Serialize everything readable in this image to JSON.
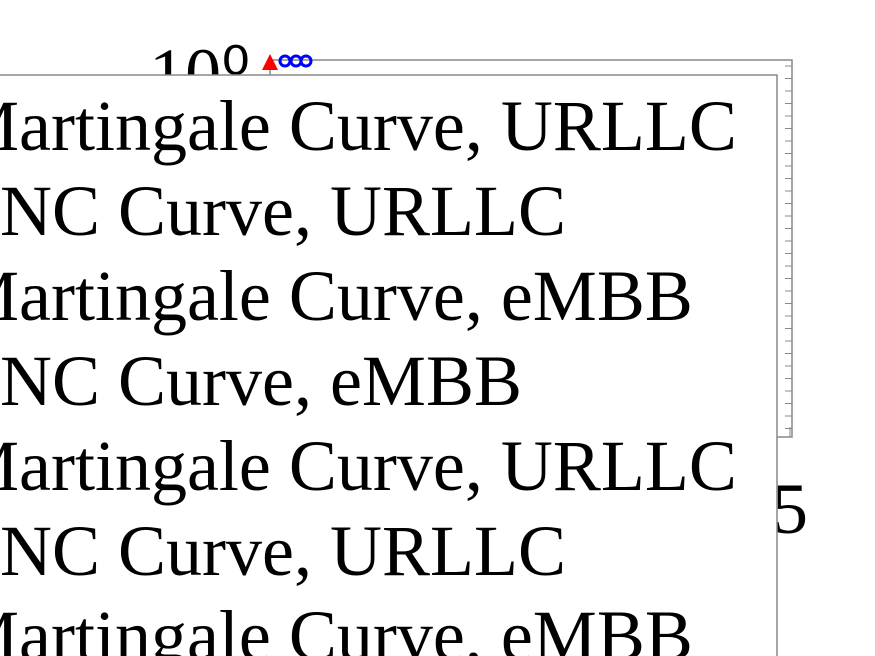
{
  "chart_data": {
    "type": "line",
    "ylog": true,
    "yticks": [
      {
        "value": 1,
        "label": "10⁰"
      }
    ],
    "xticks": [
      5
    ],
    "series": [
      {
        "name": "Martingale Curve, URLLC",
        "color": "#ff0000"
      },
      {
        "name": "NC Curve, URLLC",
        "color": "#0000ff"
      },
      {
        "name": "Martingale Curve, eMBB"
      },
      {
        "name": "NC Curve, eMBB"
      },
      {
        "name": "Martingale Curve, URLLC"
      },
      {
        "name": "NC Curve, URLLC"
      },
      {
        "name": "Martingale Curve, eMBB"
      }
    ]
  }
}
